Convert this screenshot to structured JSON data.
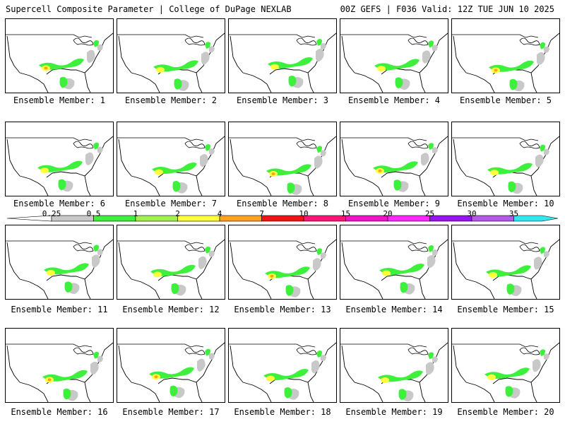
{
  "header": {
    "title_left": "Supercell Composite Parameter | College of DuPage NEXLAB",
    "title_right": "00Z GEFS | F036 Valid: 12Z TUE JUN 10 2025"
  },
  "colorbar": {
    "thresholds": [
      "0.25",
      "0.5",
      "1",
      "2",
      "4",
      "7",
      "10",
      "15",
      "20",
      "25",
      "30",
      "35"
    ],
    "colors": [
      "#c8c8c8",
      "#3cf03c",
      "#a0f050",
      "#ffff3c",
      "#ffa020",
      "#f01414",
      "#ff1478",
      "#f014c8",
      "#ff28ff",
      "#9614f0",
      "#b45ae6",
      "#32e6f0"
    ]
  },
  "map": {
    "land_color": "#ffffff",
    "line_color": "#000000",
    "low_color": "#c8c8c8",
    "mid_color": "#3cf03c",
    "high_color": "#ffff3c",
    "max_color": "#ffa020"
  },
  "members": [
    {
      "label": "Ensemble Member: 1",
      "peak": "4-7"
    },
    {
      "label": "Ensemble Member: 2",
      "peak": "2-4"
    },
    {
      "label": "Ensemble Member: 3",
      "peak": "1-2"
    },
    {
      "label": "Ensemble Member: 4",
      "peak": "2-4"
    },
    {
      "label": "Ensemble Member: 5",
      "peak": "4-7"
    },
    {
      "label": "Ensemble Member: 6",
      "peak": "2-4"
    },
    {
      "label": "Ensemble Member: 7",
      "peak": "2-4"
    },
    {
      "label": "Ensemble Member: 8",
      "peak": "4-7"
    },
    {
      "label": "Ensemble Member: 9",
      "peak": "4-7"
    },
    {
      "label": "Ensemble Member: 10",
      "peak": "1-2"
    },
    {
      "label": "Ensemble Member: 11",
      "peak": "2-4"
    },
    {
      "label": "Ensemble Member: 12",
      "peak": "1-2"
    },
    {
      "label": "Ensemble Member: 13",
      "peak": "4-7"
    },
    {
      "label": "Ensemble Member: 14",
      "peak": "2-4"
    },
    {
      "label": "Ensemble Member: 15",
      "peak": "2-4"
    },
    {
      "label": "Ensemble Member: 16",
      "peak": "4-7"
    },
    {
      "label": "Ensemble Member: 17",
      "peak": "4-7"
    },
    {
      "label": "Ensemble Member: 18",
      "peak": "1-2"
    },
    {
      "label": "Ensemble Member: 19",
      "peak": "2-4"
    },
    {
      "label": "Ensemble Member: 20",
      "peak": "1-2"
    }
  ]
}
